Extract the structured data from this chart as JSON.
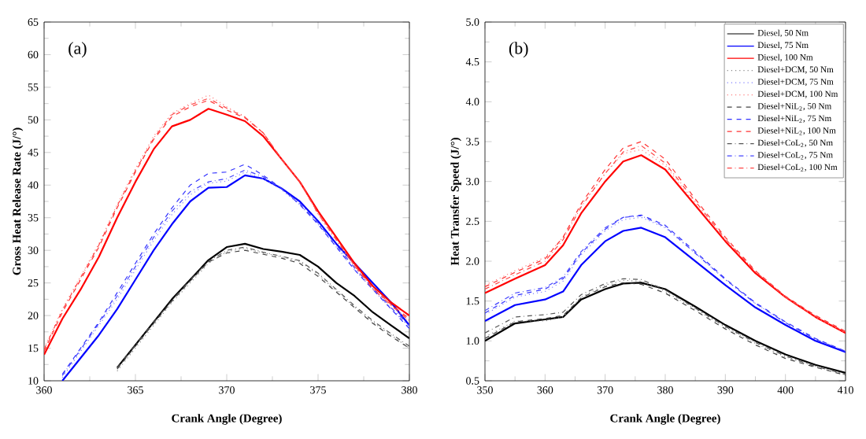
{
  "chart_data": [
    {
      "type": "line",
      "xlabel": "Crank Angle (Degree)",
      "ylabel": "Gross Heat Release Rate (J/°)",
      "annotations": [
        "(a)"
      ],
      "x": [
        360,
        361,
        362,
        363,
        364,
        365,
        366,
        367,
        368,
        369,
        370,
        371,
        372,
        373,
        374,
        375,
        376,
        377,
        378,
        379,
        380
      ],
      "xlim": [
        360,
        380
      ],
      "xticks": [
        360,
        365,
        370,
        375,
        380
      ],
      "ylim": [
        10,
        65
      ],
      "yticks": [
        10,
        15,
        20,
        25,
        30,
        35,
        40,
        45,
        50,
        55,
        60,
        65
      ],
      "legend": false,
      "series": [
        {
          "color": "#000000",
          "line_style": "solid",
          "values": [
            null,
            null,
            null,
            null,
            12,
            15.5,
            19,
            22.5,
            25.5,
            28.5,
            30.5,
            31,
            30.2,
            29.8,
            29.3,
            27.5,
            25,
            23,
            20.5,
            18.5,
            16.5
          ]
        },
        {
          "color": "#0000ff",
          "line_style": "solid",
          "values": [
            null,
            10,
            13.5,
            17,
            21,
            25.5,
            30,
            34,
            37.5,
            39.6,
            39.7,
            41.5,
            41,
            39.5,
            37.5,
            34.5,
            31,
            28,
            25,
            22,
            18.5
          ]
        },
        {
          "color": "#ff0000",
          "line_style": "solid",
          "values": [
            14,
            19.5,
            24,
            29,
            35,
            40.5,
            45.5,
            49,
            50,
            51.7,
            50.8,
            49.8,
            47.5,
            44,
            40.5,
            36,
            32,
            28,
            24.5,
            22,
            20
          ]
        },
        {
          "color": "#888888",
          "line_style": "dotted",
          "values": [
            null,
            null,
            null,
            null,
            11.5,
            15,
            18.5,
            22,
            25,
            28,
            29.8,
            30.3,
            29.6,
            29,
            28.3,
            26.3,
            23.8,
            21.3,
            19,
            17,
            15
          ]
        },
        {
          "color": "#7f7fff",
          "line_style": "dotted",
          "values": [
            null,
            10.5,
            14.5,
            18.5,
            22.5,
            27,
            31.5,
            35.5,
            38.5,
            40.3,
            40.6,
            42,
            41,
            39.3,
            37,
            34,
            30.5,
            27,
            24,
            21,
            18.3
          ]
        },
        {
          "color": "#ff7f7f",
          "line_style": "dotted",
          "values": [
            15,
            21,
            26,
            31,
            37,
            42.5,
            47.5,
            51,
            52.5,
            53.8,
            52,
            50.5,
            48,
            44,
            40.5,
            35.5,
            31.5,
            27.5,
            24,
            21.5,
            19
          ]
        },
        {
          "color": "#444444",
          "line_style": "dashed",
          "values": [
            null,
            null,
            null,
            null,
            11.8,
            15.3,
            18.8,
            22.2,
            25.3,
            28.2,
            29.6,
            30,
            29.4,
            28.8,
            28,
            26,
            23.6,
            21.2,
            18.8,
            16.8,
            15
          ]
        },
        {
          "color": "#3333ff",
          "line_style": "dashed",
          "values": [
            null,
            11,
            15,
            19,
            23.5,
            28,
            32.5,
            36.5,
            40,
            41.8,
            42,
            43.2,
            41.5,
            39.5,
            37,
            34,
            30.5,
            27,
            24,
            21,
            18
          ]
        },
        {
          "color": "#ff3333",
          "line_style": "dashed",
          "values": [
            14.5,
            20.5,
            25.5,
            30.5,
            36.5,
            42,
            47,
            50.5,
            52,
            53,
            51.5,
            50.3,
            48,
            44,
            40.5,
            35.8,
            31.8,
            27.7,
            24.2,
            21.7,
            19.5
          ]
        },
        {
          "color": "#555555",
          "line_style": "dashdotted",
          "values": [
            null,
            null,
            null,
            null,
            12,
            15.5,
            19,
            22.3,
            25.5,
            28.3,
            30,
            30.5,
            29.7,
            29.1,
            28.4,
            26.5,
            24,
            21.5,
            19.2,
            17.2,
            15.3
          ]
        },
        {
          "color": "#4444ff",
          "line_style": "dashdotted",
          "values": [
            null,
            10.8,
            14.8,
            18.8,
            23,
            27.5,
            32,
            36,
            39,
            40.5,
            41,
            42.3,
            41.3,
            39.4,
            37.2,
            34.2,
            30.8,
            27.3,
            24.2,
            21.2,
            18.5
          ]
        },
        {
          "color": "#ff4444",
          "line_style": "dashdotted",
          "values": [
            14.8,
            20.8,
            25.8,
            30.8,
            36.8,
            42.2,
            47.2,
            50.8,
            52.3,
            53.3,
            51.8,
            50.4,
            48,
            44,
            40.5,
            35.6,
            31.6,
            27.6,
            24.1,
            21.6,
            19.2
          ]
        }
      ]
    },
    {
      "type": "line",
      "xlabel": "Crank Angle (Degree)",
      "ylabel": "Heat Transfer Speed (J/°)",
      "annotations": [
        "(b)"
      ],
      "x": [
        350,
        355,
        360,
        363,
        366,
        370,
        373,
        376,
        380,
        385,
        390,
        395,
        400,
        405,
        410
      ],
      "xlim": [
        350,
        410
      ],
      "xticks": [
        350,
        360,
        370,
        380,
        390,
        400,
        410
      ],
      "ylim": [
        0.5,
        5.0
      ],
      "yticks": [
        {
          "value": 0.5,
          "label": "0.5"
        },
        {
          "value": 1.0,
          "label": "1.0"
        },
        {
          "value": 1.5,
          "label": "1.5"
        },
        {
          "value": 2.0,
          "label": "2.0"
        },
        {
          "value": 2.5,
          "label": "2.5"
        },
        {
          "value": 3.0,
          "label": "3.0"
        },
        {
          "value": 3.5,
          "label": "3.5"
        },
        {
          "value": 4.0,
          "label": "4.0"
        },
        {
          "value": 4.5,
          "label": "4.5"
        },
        {
          "value": 5.0,
          "label": "5.0"
        }
      ],
      "legend": "top right",
      "series": [
        {
          "name": "Diesel, 50 Nm",
          "color": "#000000",
          "line_style": "solid",
          "values": [
            1.0,
            1.22,
            1.27,
            1.3,
            1.52,
            1.65,
            1.72,
            1.73,
            1.65,
            1.43,
            1.2,
            1.0,
            0.83,
            0.7,
            0.6
          ]
        },
        {
          "name": "Diesel, 75 Nm",
          "color": "#0000ff",
          "line_style": "solid",
          "values": [
            1.25,
            1.45,
            1.52,
            1.62,
            1.95,
            2.25,
            2.38,
            2.42,
            2.3,
            2.0,
            1.7,
            1.42,
            1.2,
            1.0,
            0.86
          ]
        },
        {
          "name": "Diesel, 100 Nm",
          "color": "#ff0000",
          "line_style": "solid",
          "values": [
            1.6,
            1.78,
            1.95,
            2.2,
            2.6,
            3.0,
            3.25,
            3.33,
            3.15,
            2.7,
            2.25,
            1.85,
            1.55,
            1.3,
            1.1
          ]
        },
        {
          "name": "Diesel+DCM, 50 Nm",
          "color": "#888888",
          "line_style": "dotted",
          "values": [
            1.05,
            1.25,
            1.25,
            1.3,
            1.55,
            1.7,
            1.76,
            1.75,
            1.62,
            1.4,
            1.17,
            0.97,
            0.8,
            0.68,
            0.58
          ]
        },
        {
          "name": "Diesel+DCM, 75 Nm",
          "color": "#7f7fff",
          "line_style": "dotted",
          "values": [
            1.33,
            1.55,
            1.62,
            1.75,
            2.08,
            2.38,
            2.52,
            2.55,
            2.42,
            2.1,
            1.77,
            1.47,
            1.23,
            1.02,
            0.87
          ]
        },
        {
          "name": "Diesel+DCM, 100 Nm",
          "color": "#ff7f7f",
          "line_style": "dotted",
          "values": [
            1.7,
            1.88,
            2.05,
            2.3,
            2.7,
            3.1,
            3.35,
            3.4,
            3.2,
            2.72,
            2.27,
            1.87,
            1.55,
            1.3,
            1.1
          ]
        },
        {
          "name": "Diesel+NiL$_{2}$, 50 Nm",
          "color": "#444444",
          "line_style": "dashed",
          "values": [
            1.03,
            1.24,
            1.28,
            1.32,
            1.54,
            1.68,
            1.73,
            1.71,
            1.6,
            1.38,
            1.15,
            0.95,
            0.78,
            0.67,
            0.57
          ]
        },
        {
          "name": "Diesel+NiL$_{2}$, 75 Nm",
          "color": "#3333ff",
          "line_style": "dashed",
          "values": [
            1.35,
            1.57,
            1.65,
            1.78,
            2.1,
            2.4,
            2.55,
            2.58,
            2.45,
            2.12,
            1.78,
            1.48,
            1.24,
            1.03,
            0.87
          ]
        },
        {
          "name": "Diesel+NiL$_{2}$, 100 Nm",
          "color": "#ff3333",
          "line_style": "dashed",
          "values": [
            1.68,
            1.86,
            2.03,
            2.3,
            2.72,
            3.15,
            3.42,
            3.5,
            3.28,
            2.78,
            2.3,
            1.88,
            1.56,
            1.32,
            1.12
          ]
        },
        {
          "name": "Diesel+CoL$_{2}$, 50 Nm",
          "color": "#555555",
          "line_style": "dashdotted",
          "values": [
            1.1,
            1.3,
            1.33,
            1.36,
            1.58,
            1.72,
            1.78,
            1.77,
            1.64,
            1.41,
            1.18,
            0.98,
            0.81,
            0.68,
            0.58
          ]
        },
        {
          "name": "Diesel+CoL$_{2}$, 75 Nm",
          "color": "#4444ff",
          "line_style": "dashdotted",
          "values": [
            1.38,
            1.6,
            1.67,
            1.8,
            2.12,
            2.42,
            2.55,
            2.57,
            2.43,
            2.1,
            1.77,
            1.47,
            1.23,
            1.02,
            0.87
          ]
        },
        {
          "name": "Diesel+CoL$_{2}$, 100 Nm",
          "color": "#ff4444",
          "line_style": "dashdotted",
          "values": [
            1.65,
            1.83,
            2.0,
            2.27,
            2.68,
            3.1,
            3.37,
            3.45,
            3.23,
            2.75,
            2.28,
            1.87,
            1.55,
            1.31,
            1.11
          ]
        }
      ]
    }
  ]
}
